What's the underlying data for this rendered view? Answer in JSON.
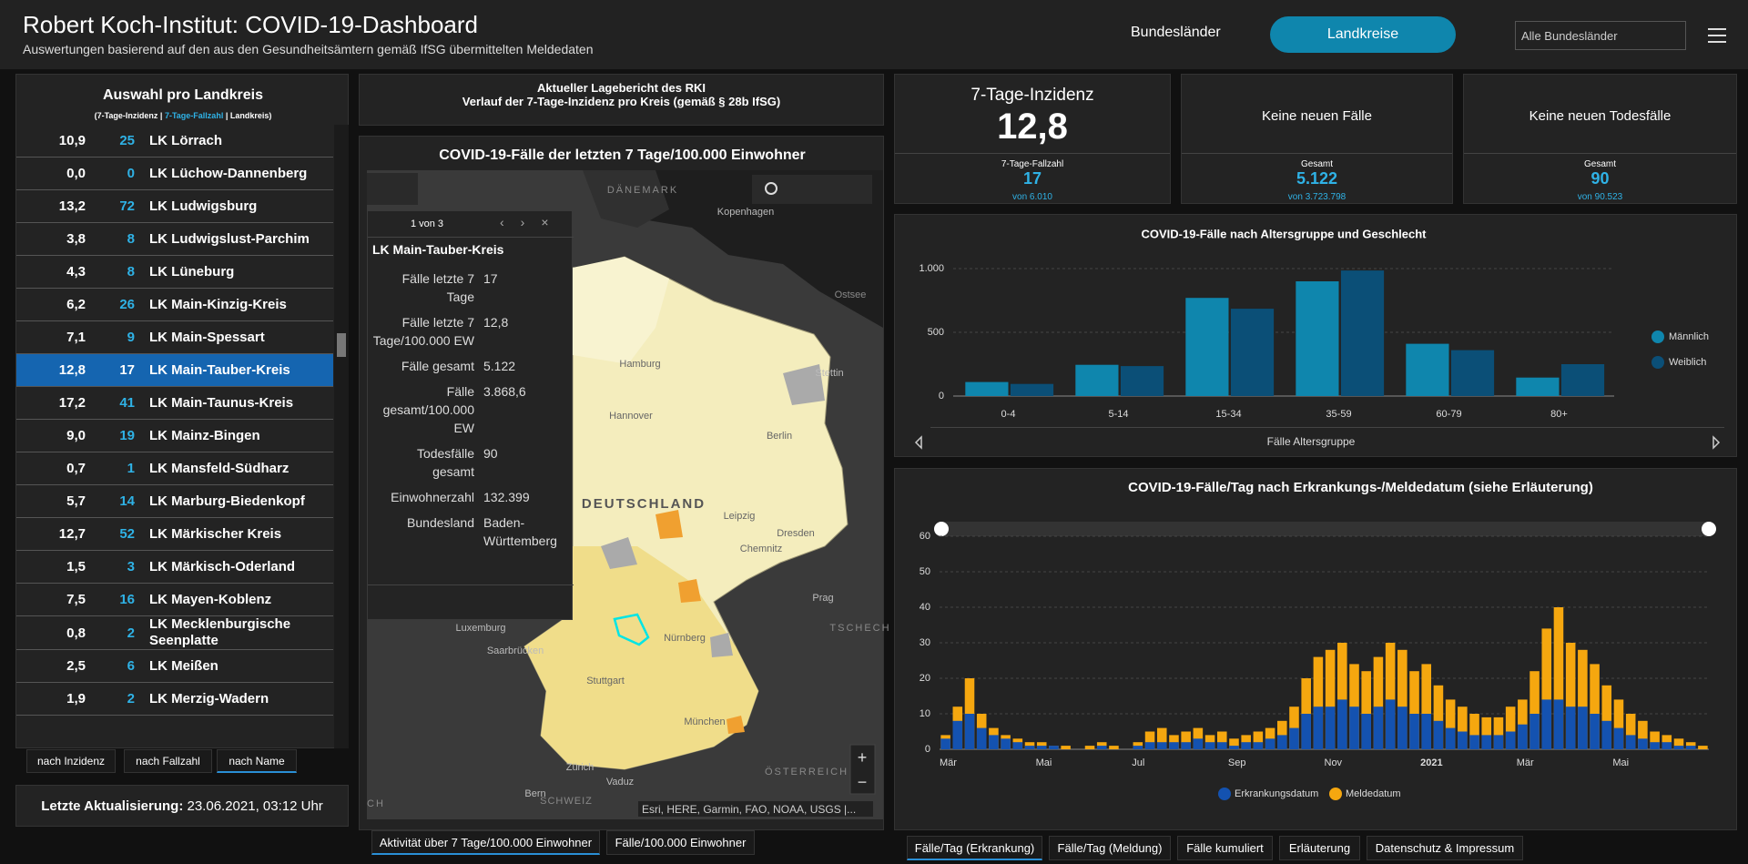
{
  "header": {
    "title": "Robert Koch-Institut: COVID-19-Dashboard",
    "subtitle": "Auswertungen basierend auf den aus den Gesundheitsämtern gemäß IfSG übermittelten Meldedaten",
    "tabs": [
      "Bundesländer",
      "Landkreise"
    ],
    "dropdown": "Alle Bundesländer"
  },
  "sidebar": {
    "title": "Auswahl pro Landkreis",
    "legend": [
      "(7-Tage-Inzidenz |",
      "7-Tage-Fallzahl",
      "| Landkreis)"
    ],
    "rows": [
      {
        "incidence": "10,9",
        "cases": 25,
        "name": "LK Lörrach"
      },
      {
        "incidence": "0,0",
        "cases": 0,
        "name": "LK Lüchow-Dannenberg"
      },
      {
        "incidence": "13,2",
        "cases": 72,
        "name": "LK Ludwigsburg"
      },
      {
        "incidence": "3,8",
        "cases": 8,
        "name": "LK Ludwigslust-Parchim"
      },
      {
        "incidence": "4,3",
        "cases": 8,
        "name": "LK Lüneburg"
      },
      {
        "incidence": "6,2",
        "cases": 26,
        "name": "LK Main-Kinzig-Kreis"
      },
      {
        "incidence": "7,1",
        "cases": 9,
        "name": "LK Main-Spessart"
      },
      {
        "incidence": "12,8",
        "cases": 17,
        "name": "LK Main-Tauber-Kreis",
        "selected": true
      },
      {
        "incidence": "17,2",
        "cases": 41,
        "name": "LK Main-Taunus-Kreis"
      },
      {
        "incidence": "9,0",
        "cases": 19,
        "name": "LK Mainz-Bingen"
      },
      {
        "incidence": "0,7",
        "cases": 1,
        "name": "LK Mansfeld-Südharz"
      },
      {
        "incidence": "5,7",
        "cases": 14,
        "name": "LK Marburg-Biedenkopf"
      },
      {
        "incidence": "12,7",
        "cases": 52,
        "name": "LK Märkischer Kreis"
      },
      {
        "incidence": "1,5",
        "cases": 3,
        "name": "LK Märkisch-Oderland"
      },
      {
        "incidence": "7,5",
        "cases": 16,
        "name": "LK Mayen-Koblenz"
      },
      {
        "incidence": "0,8",
        "cases": 2,
        "name": "LK Mecklenburgische Seenplatte"
      },
      {
        "incidence": "2,5",
        "cases": 6,
        "name": "LK Meißen"
      },
      {
        "incidence": "1,9",
        "cases": 2,
        "name": "LK Merzig-Wadern"
      }
    ],
    "sort_buttons": [
      "nach Inzidenz",
      "nach Fallzahl",
      "nach Name"
    ],
    "update_label": "Letzte Aktualisierung:",
    "update_value": "23.06.2021, 03:12 Uhr"
  },
  "map": {
    "header": [
      "Aktueller Lagebericht des RKI",
      "Verlauf der 7-Tage-Inzidenz pro Kreis (gemäß § 28b IfSG)"
    ],
    "title": "COVID-19-Fälle der letzten 7 Tage/100.000 Einwohner",
    "labels": [
      "DÄNEMARK",
      "Kopenhagen",
      "Ostsee",
      "Hamburg",
      "Stettin",
      "Berlin",
      "Hannover",
      "DEUTSCHLAND",
      "Leipzig",
      "Dresden",
      "Chemnitz",
      "Prag",
      "TSCHECH",
      "Luxemburg",
      "Saarbrücken",
      "Nürnberg",
      "Stuttgart",
      "München",
      "Zürich",
      "Vaduz",
      "Bern",
      "SCHWEIZ",
      "ÖSTERREICH",
      "CH"
    ],
    "attribution": "Esri, HERE, Garmin, FAO, NOAA, USGS |...",
    "popup": {
      "pager": "1 von 3",
      "title": "LK Main-Tauber-Kreis",
      "fields": [
        {
          "label": "Fälle letzte 7 Tage",
          "value": "17"
        },
        {
          "label": "Fälle letzte 7 Tage/100.000 EW",
          "value": "12,8"
        },
        {
          "label": "Fälle gesamt",
          "value": "5.122"
        },
        {
          "label": "Fälle gesamt/100.000 EW",
          "value": "3.868,6"
        },
        {
          "label": "Todesfälle gesamt",
          "value": "90"
        },
        {
          "label": "Einwohnerzahl",
          "value": "132.399"
        },
        {
          "label": "Bundesland",
          "value": "Baden-Württemberg"
        }
      ]
    },
    "tabs": [
      "Aktivität über 7 Tage/100.000 Einwohner",
      "Fälle/100.000 Einwohner"
    ]
  },
  "kpis": [
    {
      "title": "7-Tage-Inzidenz",
      "value": "12,8",
      "sub_label": "7-Tage-Fallzahl",
      "sub_value": "17",
      "sub_total": "von 6.010"
    },
    {
      "title": "Keine neuen Fälle",
      "sub_label": "Gesamt",
      "sub_value": "5.122",
      "sub_total": "von 3.723.798"
    },
    {
      "title": "Keine neuen Todesfälle",
      "sub_label": "Gesamt",
      "sub_value": "90",
      "sub_total": "von 90.523"
    }
  ],
  "chart_data": [
    {
      "type": "bar",
      "barmode": "group",
      "title": "COVID-19-Fälle nach Altersgruppe und Geschlecht",
      "x_label": "Fälle Altersgruppe",
      "categories": [
        "0-4",
        "5-14",
        "15-34",
        "35-59",
        "60-79",
        "80+"
      ],
      "series": [
        {
          "name": "Männlich",
          "color": "#0f86ad",
          "values": [
            110,
            245,
            770,
            900,
            410,
            145
          ]
        },
        {
          "name": "Weiblich",
          "color": "#0b4f77",
          "values": [
            95,
            235,
            685,
            985,
            360,
            250
          ]
        }
      ],
      "ylim": [
        0,
        1000
      ],
      "yticks": [
        0,
        500,
        {
          "value": 1000,
          "label": "1.000"
        }
      ],
      "grid": true,
      "legend": "right"
    },
    {
      "type": "bar",
      "barmode": "overlay",
      "title": "COVID-19-Fälle/Tag nach Erkrankungs-/Meldedatum (siehe Erläuterung)",
      "categories": [
        "Mär",
        null,
        null,
        null,
        null,
        null,
        null,
        null,
        "Mai",
        null,
        null,
        null,
        null,
        null,
        null,
        null,
        "Jul",
        null,
        null,
        null,
        null,
        null,
        null,
        null,
        "Sep",
        null,
        null,
        null,
        null,
        null,
        null,
        null,
        "Nov",
        null,
        null,
        null,
        null,
        null,
        null,
        null,
        "2021",
        null,
        null,
        null,
        null,
        null,
        null,
        null,
        "Mär",
        null,
        null,
        null,
        null,
        null,
        null,
        null,
        "Mai",
        null,
        null,
        null,
        null,
        null,
        null,
        null
      ],
      "series": [
        {
          "name": "Erkrankungsdatum",
          "color": "#1452b0",
          "values": [
            3,
            8,
            10,
            6,
            4,
            3,
            2,
            1,
            1,
            1,
            0,
            0,
            0,
            1,
            0,
            0,
            1,
            2,
            2,
            2,
            2,
            3,
            2,
            2,
            1,
            2,
            2,
            3,
            4,
            6,
            10,
            12,
            12,
            14,
            12,
            10,
            12,
            14,
            12,
            10,
            10,
            8,
            6,
            5,
            4,
            4,
            4,
            5,
            7,
            10,
            14,
            14,
            12,
            12,
            10,
            8,
            6,
            4,
            3,
            2,
            2,
            1,
            1,
            0
          ]
        },
        {
          "name": "Meldedatum",
          "color": "#f5a70f",
          "values": [
            4,
            12,
            20,
            10,
            6,
            4,
            3,
            2,
            2,
            1,
            1,
            0,
            1,
            2,
            1,
            0,
            2,
            5,
            6,
            4,
            5,
            6,
            4,
            5,
            3,
            4,
            5,
            6,
            8,
            12,
            20,
            26,
            28,
            30,
            24,
            22,
            26,
            30,
            28,
            22,
            24,
            18,
            14,
            12,
            10,
            9,
            9,
            12,
            14,
            22,
            34,
            40,
            30,
            28,
            24,
            18,
            14,
            10,
            8,
            5,
            4,
            3,
            2,
            1
          ]
        }
      ],
      "ylim": [
        0,
        60
      ],
      "yticks": [
        0,
        10,
        20,
        30,
        40,
        50,
        60
      ],
      "grid": true,
      "legend": "bottom"
    }
  ],
  "bottom_tabs": [
    "Fälle/Tag (Erkrankung)",
    "Fälle/Tag (Meldung)",
    "Fälle kumuliert",
    "Erläuterung",
    "Datenschutz & Impressum"
  ]
}
